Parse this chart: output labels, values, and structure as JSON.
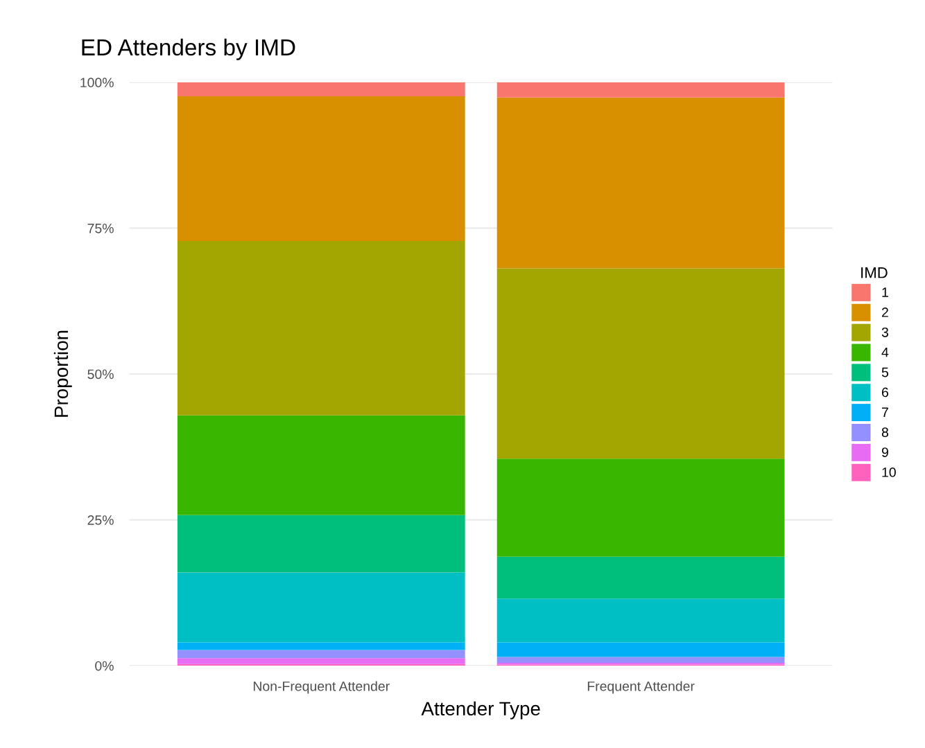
{
  "chart_data": {
    "type": "bar",
    "stacked": true,
    "title": "ED Attenders by IMD",
    "xlabel": "Attender Type",
    "ylabel": "Proportion",
    "legend_title": "IMD",
    "categories": [
      "Non-Frequent Attender",
      "Frequent Attender"
    ],
    "series": [
      {
        "name": "10",
        "color": "#ff62bc",
        "values": [
          0.3,
          0.2
        ]
      },
      {
        "name": "9",
        "color": "#e76bf3",
        "values": [
          1.0,
          0.3
        ]
      },
      {
        "name": "8",
        "color": "#9590ff",
        "values": [
          1.4,
          1.0
        ]
      },
      {
        "name": "7",
        "color": "#00b0f6",
        "values": [
          1.3,
          2.5
        ]
      },
      {
        "name": "6",
        "color": "#00bfc4",
        "values": [
          12.0,
          7.5
        ]
      },
      {
        "name": "5",
        "color": "#00bf7d",
        "values": [
          9.8,
          7.2
        ]
      },
      {
        "name": "4",
        "color": "#39b600",
        "values": [
          17.1,
          16.8
        ]
      },
      {
        "name": "3",
        "color": "#a3a500",
        "values": [
          29.9,
          32.6
        ]
      },
      {
        "name": "2",
        "color": "#d89000",
        "values": [
          24.8,
          29.3
        ]
      },
      {
        "name": "1",
        "color": "#f8766d",
        "values": [
          2.4,
          2.6
        ]
      }
    ],
    "ylim": [
      0,
      100
    ],
    "yticks": [
      {
        "value": 0,
        "label": "0%"
      },
      {
        "value": 25,
        "label": "25%"
      },
      {
        "value": 50,
        "label": "50%"
      },
      {
        "value": 75,
        "label": "75%"
      },
      {
        "value": 100,
        "label": "100%"
      }
    ],
    "grid": "y",
    "legend": "right"
  }
}
